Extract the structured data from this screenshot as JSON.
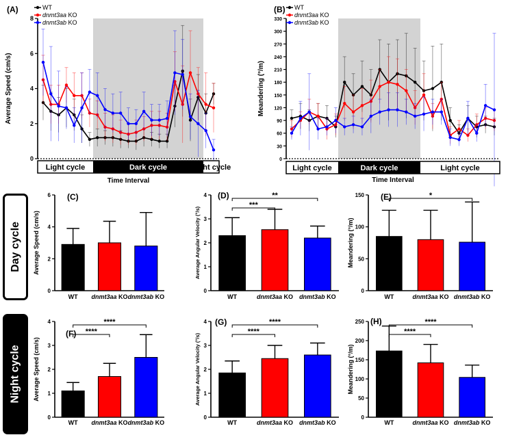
{
  "side_labels": {
    "day": "Day cycle",
    "night": "Night cycle"
  },
  "cycle_bar": {
    "light": "Light cycle",
    "dark": "Dark cycle",
    "xlabel": "Time Interval"
  },
  "colors": {
    "WT": "#000000",
    "dnmt3aa": "#ff0000",
    "dnmt3ab": "#0000ff",
    "shade": "#d3d3d3"
  },
  "chart_data": [
    {
      "panel": "(A)",
      "type": "line",
      "ylabel": "Average Speed (cm/s)",
      "xlabel": "Time Interval",
      "ylim": [
        0,
        8
      ],
      "yticks": [
        0,
        2,
        4,
        6,
        8
      ],
      "dark_period": [
        7,
        20
      ],
      "legend": [
        {
          "name": "WT"
        },
        {
          "italic": "dnmt3aa",
          "rest": " KO"
        },
        {
          "italic": "dnmt3ab",
          "rest": " KO"
        }
      ],
      "series": [
        {
          "name": "WT",
          "values": [
            3.2,
            2.7,
            2.5,
            2.9,
            2.5,
            1.7,
            1.1,
            1.2,
            1.2,
            1.2,
            1.1,
            1.0,
            1.0,
            1.2,
            1.1,
            1.0,
            1.0,
            3.0,
            5.0,
            2.2,
            3.5,
            2.6,
            3.7
          ],
          "errors": [
            1.0,
            1.1,
            1.0,
            1.1,
            0.9,
            0.8,
            0.4,
            0.5,
            0.4,
            0.5,
            0.5,
            0.4,
            0.5,
            0.5,
            0.4,
            0.4,
            0.4,
            1.2,
            2.6,
            1.2,
            1.3,
            1.1,
            0.6
          ]
        },
        {
          "name": "dnmt3aa KO",
          "values": [
            4.5,
            3.1,
            3.1,
            4.2,
            3.6,
            3.6,
            2.6,
            2.5,
            1.8,
            1.7,
            1.5,
            1.4,
            1.5,
            1.7,
            1.9,
            1.9,
            1.8,
            4.4,
            3.1,
            4.9,
            3.7,
            3.1,
            2.9
          ],
          "errors": [
            1.4,
            1.1,
            1.1,
            1.0,
            1.3,
            1.3,
            0.8,
            0.8,
            0.8,
            0.8,
            0.7,
            0.6,
            0.7,
            0.7,
            0.8,
            0.8,
            0.8,
            1.7,
            2.2,
            2.4,
            1.5,
            1.8,
            1.4
          ]
        },
        {
          "name": "dnmt3ab KO",
          "values": [
            5.5,
            3.7,
            3.0,
            2.9,
            1.9,
            2.9,
            3.8,
            3.6,
            2.8,
            2.6,
            2.6,
            2.0,
            2.0,
            2.7,
            2.2,
            2.2,
            2.3,
            4.9,
            4.8,
            2.4,
            2.0,
            1.6,
            0.5
          ],
          "errors": [
            1.9,
            2.7,
            2.0,
            1.2,
            1.0,
            2.0,
            1.3,
            1.3,
            1.2,
            1.1,
            1.2,
            0.9,
            0.8,
            1.1,
            0.9,
            0.9,
            1.0,
            2.4,
            2.0,
            1.3,
            1.9,
            1.0,
            0.6
          ]
        }
      ]
    },
    {
      "panel": "(B)",
      "type": "line",
      "ylabel": "Meandering (°/m)",
      "xlabel": "Time Interval",
      "ylim": [
        0,
        330
      ],
      "yticks": [
        0,
        30,
        60,
        90,
        120,
        150,
        180,
        210,
        240,
        270,
        300,
        330
      ],
      "dark_period": [
        6,
        17
      ],
      "legend": [
        {
          "name": "WT"
        },
        {
          "italic": "dnmt3aa",
          "rest": " KO"
        },
        {
          "italic": "dnmt3ab",
          "rest": " KO"
        }
      ],
      "series": [
        {
          "name": "WT",
          "values": [
            95,
            100,
            90,
            100,
            95,
            75,
            180,
            150,
            170,
            150,
            210,
            180,
            200,
            195,
            180,
            160,
            165,
            180,
            90,
            60,
            95,
            75,
            80,
            75
          ],
          "errors": [
            20,
            30,
            25,
            30,
            30,
            25,
            60,
            50,
            60,
            60,
            70,
            90,
            80,
            100,
            80,
            70,
            100,
            90,
            30,
            20,
            30,
            25,
            20,
            20
          ]
        },
        {
          "name": "dnmt3aa KO",
          "values": [
            70,
            90,
            110,
            100,
            70,
            80,
            130,
            110,
            125,
            135,
            170,
            180,
            175,
            160,
            120,
            150,
            100,
            140,
            55,
            70,
            55,
            80,
            95,
            90
          ],
          "errors": [
            20,
            20,
            30,
            30,
            25,
            25,
            40,
            40,
            40,
            50,
            40,
            60,
            60,
            50,
            40,
            50,
            30,
            40,
            20,
            20,
            15,
            25,
            25,
            25
          ]
        },
        {
          "name": "dnmt3ab KO",
          "values": [
            60,
            95,
            110,
            70,
            75,
            90,
            75,
            80,
            75,
            100,
            110,
            115,
            115,
            110,
            100,
            105,
            110,
            110,
            50,
            45,
            95,
            60,
            125,
            115
          ],
          "errors": [
            15,
            40,
            90,
            25,
            20,
            30,
            20,
            20,
            20,
            40,
            30,
            40,
            40,
            30,
            30,
            40,
            30,
            30,
            20,
            15,
            40,
            20,
            50,
            180
          ]
        }
      ]
    },
    {
      "panel": "(C)",
      "type": "bar",
      "ylabel": "Average Speed (cm/s)",
      "ylim": [
        0,
        6
      ],
      "yticks": [
        0,
        2,
        4,
        6
      ],
      "categories": [
        "WT",
        "dnmt3aa KO",
        "dnmt3ab KO"
      ],
      "values": [
        2.9,
        3.0,
        2.8
      ],
      "errors": [
        1.0,
        1.35,
        2.1
      ],
      "significance": []
    },
    {
      "panel": "(D)",
      "type": "bar",
      "ylabel": "Average Angular Velocity (°/s)",
      "ylim": [
        0,
        4
      ],
      "yticks": [
        0,
        1,
        2,
        3,
        4
      ],
      "categories": [
        "WT",
        "dnmt3aa KO",
        "dnmt3ab KO"
      ],
      "values": [
        2.3,
        2.55,
        2.2
      ],
      "errors": [
        0.75,
        0.85,
        0.5
      ],
      "significance": [
        {
          "from": 0,
          "to": 1,
          "label": "***"
        },
        {
          "from": 0,
          "to": 2,
          "label": "**"
        }
      ]
    },
    {
      "panel": "(E)",
      "type": "bar",
      "ylabel": "Meandering (°/m)",
      "ylim": [
        0,
        150
      ],
      "yticks": [
        0,
        50,
        100,
        150
      ],
      "categories": [
        "WT",
        "dnmt3aa KO",
        "dnmt3ab KO"
      ],
      "values": [
        85,
        80,
        76
      ],
      "errors": [
        41,
        46,
        63
      ],
      "significance": [
        {
          "from": 0,
          "to": 2,
          "label": "*"
        }
      ]
    },
    {
      "panel": "(F)",
      "type": "bar",
      "ylabel": "Average Speed (cm/s)",
      "ylim": [
        0,
        4
      ],
      "yticks": [
        0,
        1,
        2,
        3,
        4
      ],
      "categories": [
        "WT",
        "dnmt3aa KO",
        "dnmt3ab KO"
      ],
      "values": [
        1.1,
        1.7,
        2.5
      ],
      "errors": [
        0.35,
        0.55,
        0.95
      ],
      "significance": [
        {
          "from": 0,
          "to": 1,
          "label": "****"
        },
        {
          "from": 0,
          "to": 2,
          "label": "****"
        }
      ]
    },
    {
      "panel": "(G)",
      "type": "bar",
      "ylabel": "Average Angular Velocity (°/s)",
      "ylim": [
        0,
        4
      ],
      "yticks": [
        0,
        1,
        2,
        3,
        4
      ],
      "categories": [
        "WT",
        "dnmt3aa KO",
        "dnmt3ab KO"
      ],
      "values": [
        1.85,
        2.45,
        2.6
      ],
      "errors": [
        0.5,
        0.55,
        0.5
      ],
      "significance": [
        {
          "from": 0,
          "to": 1,
          "label": "****"
        },
        {
          "from": 0,
          "to": 2,
          "label": "****"
        }
      ]
    },
    {
      "panel": "(H)",
      "type": "bar",
      "ylabel": "Meandering (°/m)",
      "ylim": [
        0,
        250
      ],
      "yticks": [
        0,
        50,
        100,
        150,
        200,
        250
      ],
      "categories": [
        "WT",
        "dnmt3aa KO",
        "dnmt3ab KO"
      ],
      "values": [
        173,
        142,
        104
      ],
      "errors": [
        65,
        48,
        32
      ],
      "significance": [
        {
          "from": 0,
          "to": 1,
          "label": "****"
        },
        {
          "from": 0,
          "to": 2,
          "label": "****"
        }
      ]
    }
  ]
}
